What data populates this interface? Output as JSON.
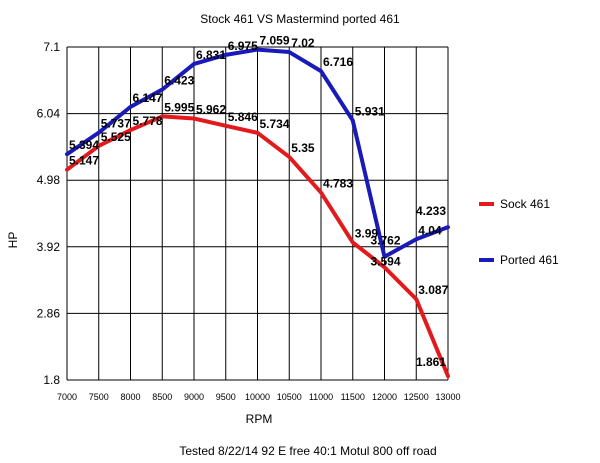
{
  "chart_data": {
    "type": "line",
    "title": "Stock 461 VS Mastermind ported 461",
    "xlabel": "RPM",
    "ylabel": "HP",
    "x": [
      7000,
      7500,
      8000,
      8500,
      9000,
      9500,
      10000,
      10500,
      11000,
      11500,
      12000,
      12500,
      13000
    ],
    "x_tick_labels": [
      "7000",
      "7500",
      "8000",
      "8500",
      "9000",
      "9500",
      "10000",
      "10500",
      "11000",
      "11500",
      "12000",
      "12500",
      "13000"
    ],
    "y_ticks": [
      1.8,
      2.86,
      3.92,
      4.98,
      6.04,
      7.1
    ],
    "y_tick_labels": [
      "1.8",
      "2.86",
      "3.92",
      "4.98",
      "6.04",
      "7.1"
    ],
    "ylim": [
      1.8,
      7.1
    ],
    "grid": true,
    "legend_position": "right",
    "footnote": "Tested 8/22/14 92 E free 40:1 Motul 800 off road",
    "series": [
      {
        "name": "Sock 461",
        "color": "#e31a1c",
        "values": [
          5.147,
          5.525,
          5.778,
          5.995,
          5.962,
          5.846,
          5.734,
          5.35,
          4.783,
          3.99,
          3.594,
          3.087,
          1.861
        ],
        "labels": [
          "5.147",
          "5.525",
          "5.778",
          "5.995",
          "5.962",
          "5.846",
          "5.734",
          "5.35",
          "4.783",
          "3.99",
          "3.594",
          "3.087",
          "1.861"
        ]
      },
      {
        "name": "Ported 461",
        "color": "#1a1ab8",
        "values": [
          5.394,
          5.737,
          6.147,
          6.423,
          6.831,
          6.975,
          7.059,
          7.02,
          6.716,
          5.931,
          3.762,
          4.04,
          4.233
        ],
        "labels": [
          "5.394",
          "5.737",
          "6.147",
          "6.423",
          "6.831",
          "6.975",
          "7.059",
          "7.02",
          "6.716",
          "5.931",
          "3.762",
          "4.04",
          "4.233"
        ]
      }
    ]
  }
}
